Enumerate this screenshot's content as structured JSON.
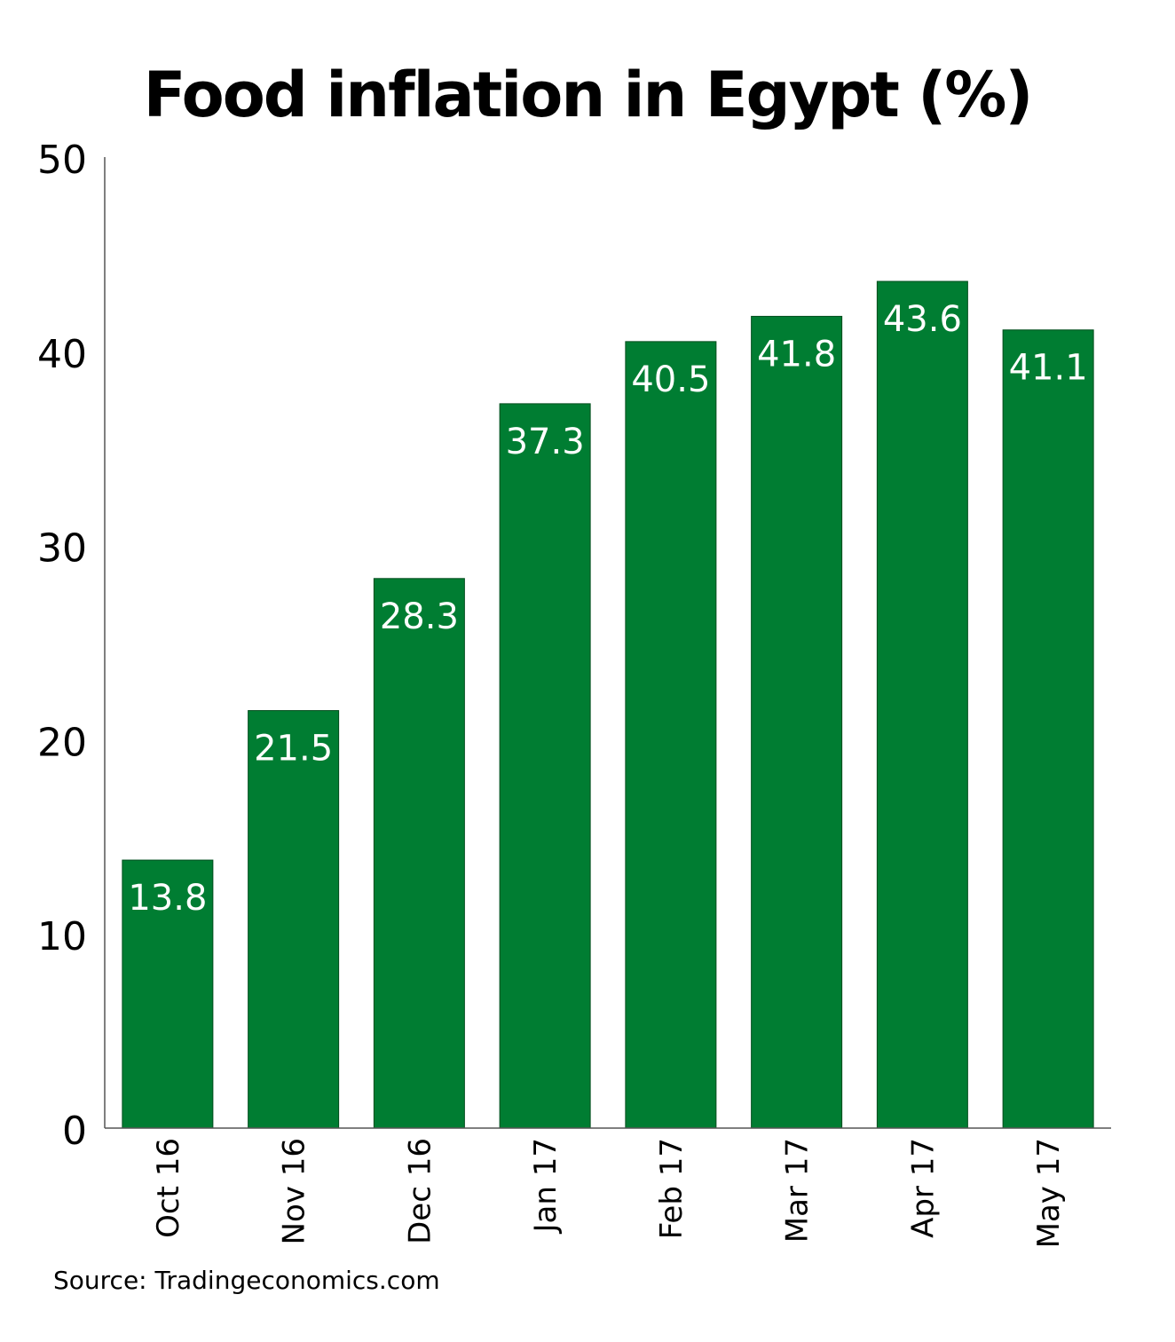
{
  "chart_data": {
    "type": "bar",
    "title": "Food inflation in Egypt (%)",
    "categories": [
      "Oct 16",
      "Nov 16",
      "Dec 16",
      "Jan 17",
      "Feb 17",
      "Mar 17",
      "Apr 17",
      "May 17"
    ],
    "values": [
      13.8,
      21.5,
      28.3,
      37.3,
      40.5,
      41.8,
      43.6,
      41.1
    ],
    "ylim": [
      0,
      50
    ],
    "yticks": [
      0,
      10,
      20,
      30,
      40,
      50
    ],
    "grid": false,
    "bar_color": "#007d32",
    "data_label_color": "#ffffff",
    "source": "Source: Tradingeconomics.com"
  }
}
